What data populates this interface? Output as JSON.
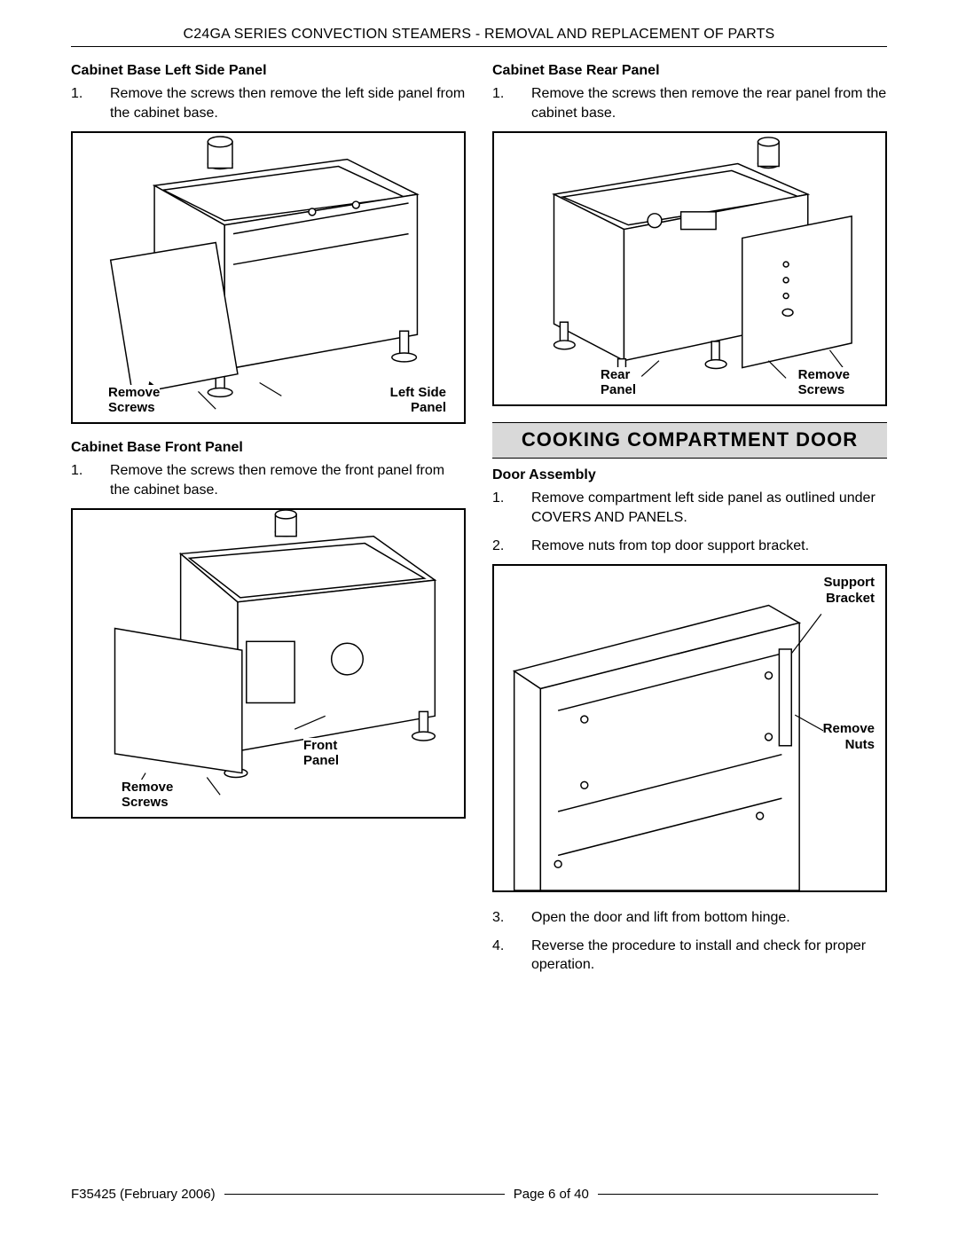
{
  "header": "C24GA SERIES CONVECTION STEAMERS - REMOVAL AND REPLACEMENT OF PARTS",
  "left": {
    "sec1": {
      "title": "Cabinet Base Left Side Panel",
      "step1_num": "1.",
      "step1_txt": "Remove the screws then remove the left side panel from the cabinet base.",
      "fig": {
        "label_remove": "Remove\nScrews",
        "label_panel": "Left Side\nPanel"
      }
    },
    "sec2": {
      "title": "Cabinet Base Front Panel",
      "step1_num": "1.",
      "step1_txt": "Remove the screws then remove the front panel from the cabinet base.",
      "fig": {
        "label_remove": "Remove\nScrews",
        "label_panel": "Front\nPanel"
      }
    }
  },
  "right": {
    "sec1": {
      "title": "Cabinet Base Rear Panel",
      "step1_num": "1.",
      "step1_txt": "Remove the screws then remove the rear panel from the cabinet base.",
      "fig": {
        "label_rear": "Rear\nPanel",
        "label_remove": "Remove\nScrews"
      }
    },
    "section_title": "COOKING COMPARTMENT DOOR",
    "sec2": {
      "title": "Door Assembly",
      "step1_num": "1.",
      "step1_txt": "Remove compartment left side panel as outlined under COVERS AND PANELS.",
      "step2_num": "2.",
      "step2_txt": "Remove nuts from top door support bracket.",
      "fig": {
        "label_support": "Support\nBracket",
        "label_remove": "Remove\nNuts"
      },
      "step3_num": "3.",
      "step3_txt": "Open the door and lift from bottom hinge.",
      "step4_num": "4.",
      "step4_txt": "Reverse the procedure to install and check for proper operation."
    }
  },
  "footer": {
    "left": "F35425 (February 2006)",
    "center": "Page 6 of 40"
  }
}
